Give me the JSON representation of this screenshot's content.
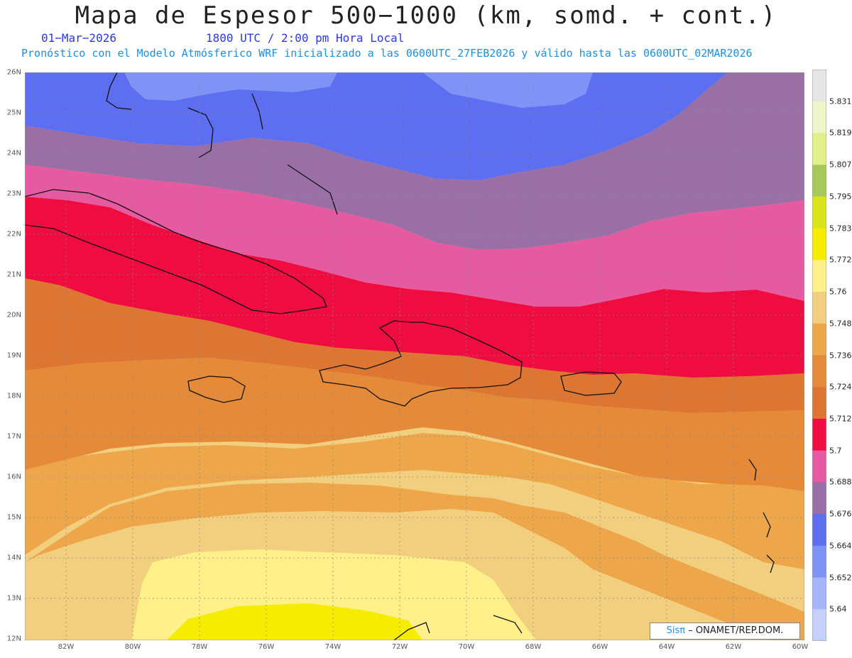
{
  "title": "Mapa de Espesor 500−1000 (km, somd. + cont.)",
  "date": "01−Mar−2026",
  "time": "1800 UTC / 2:00 pm Hora Local",
  "forecast_line": "Pronóstico con el Modelo Atmósferico WRF inicializado a las 0600UTC_27FEB2026 y válido hasta las  0600UTC_02MAR2026",
  "credit": {
    "brand": "Sisπ",
    "text": "– ONAMET/REP.DOM."
  },
  "longitudes": [
    "82W",
    "80W",
    "78W",
    "76W",
    "74W",
    "72W",
    "70W",
    "68W",
    "66W",
    "64W",
    "62W",
    "60W"
  ],
  "latitudes": [
    "26N",
    "25N",
    "24N",
    "23N",
    "22N",
    "21N",
    "20N",
    "19N",
    "18N",
    "17N",
    "16N",
    "15N",
    "14N",
    "13N",
    "12N"
  ],
  "legend": {
    "levels": [
      "5.831",
      "5.819",
      "5.807",
      "5.795",
      "5.783",
      "5.772",
      "5.76",
      "5.748",
      "5.736",
      "5.724",
      "5.712",
      "5.7",
      "5.688",
      "5.676",
      "5.664",
      "5.652",
      "5.64"
    ],
    "colors": [
      "#e6e6e6",
      "#eef5c8",
      "#e2f08a",
      "#a6c95a",
      "#d9e51a",
      "#f6ec00",
      "#fff08a",
      "#f2cf7e",
      "#eda64a",
      "#e48a38",
      "#dd7632",
      "#ee0c40",
      "#e65aa2",
      "#9a6fa6",
      "#5e6ef0",
      "#7f93f7",
      "#a7b6fa",
      "#c6d0fc"
    ]
  },
  "colors": {
    "blue_mid": "#5e6ef0",
    "blue_light": "#7f93f7",
    "purple": "#9a6fa6",
    "pink": "#e65aa2",
    "red": "#ee0c40",
    "orange_dark": "#dd7632",
    "orange": "#e48a38",
    "orange_light": "#eda64a",
    "tan": "#f2cf7e",
    "yellow_light": "#fff08a",
    "yellow": "#f6ec00"
  }
}
